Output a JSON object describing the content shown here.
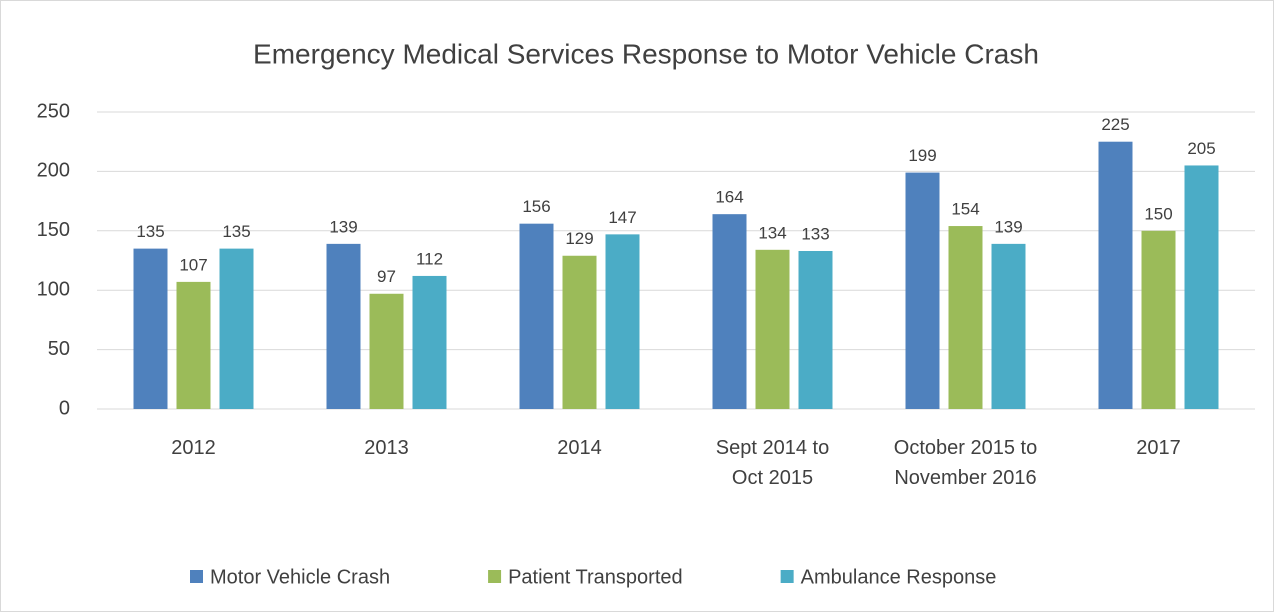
{
  "chart_data": {
    "type": "bar",
    "title": "Emergency Medical Services Response to Motor Vehicle Crash",
    "categories": [
      "2012",
      "2013",
      "2014",
      "Sept 2014 to Oct 2015",
      "October 2015 to November 2016",
      "2017"
    ],
    "series": [
      {
        "name": "Motor Vehicle Crash",
        "color": "#4f81bd",
        "values": [
          135,
          139,
          156,
          164,
          199,
          225
        ]
      },
      {
        "name": "Patient Transported",
        "color": "#9bbb59",
        "values": [
          107,
          97,
          129,
          134,
          154,
          150
        ]
      },
      {
        "name": "Ambulance Response",
        "color": "#4bacc6",
        "values": [
          135,
          112,
          147,
          133,
          139,
          205
        ]
      }
    ],
    "ylim": [
      0,
      250
    ],
    "yticks": [
      0,
      50,
      100,
      150,
      200,
      250
    ],
    "grid": true,
    "legend": "bottom"
  }
}
